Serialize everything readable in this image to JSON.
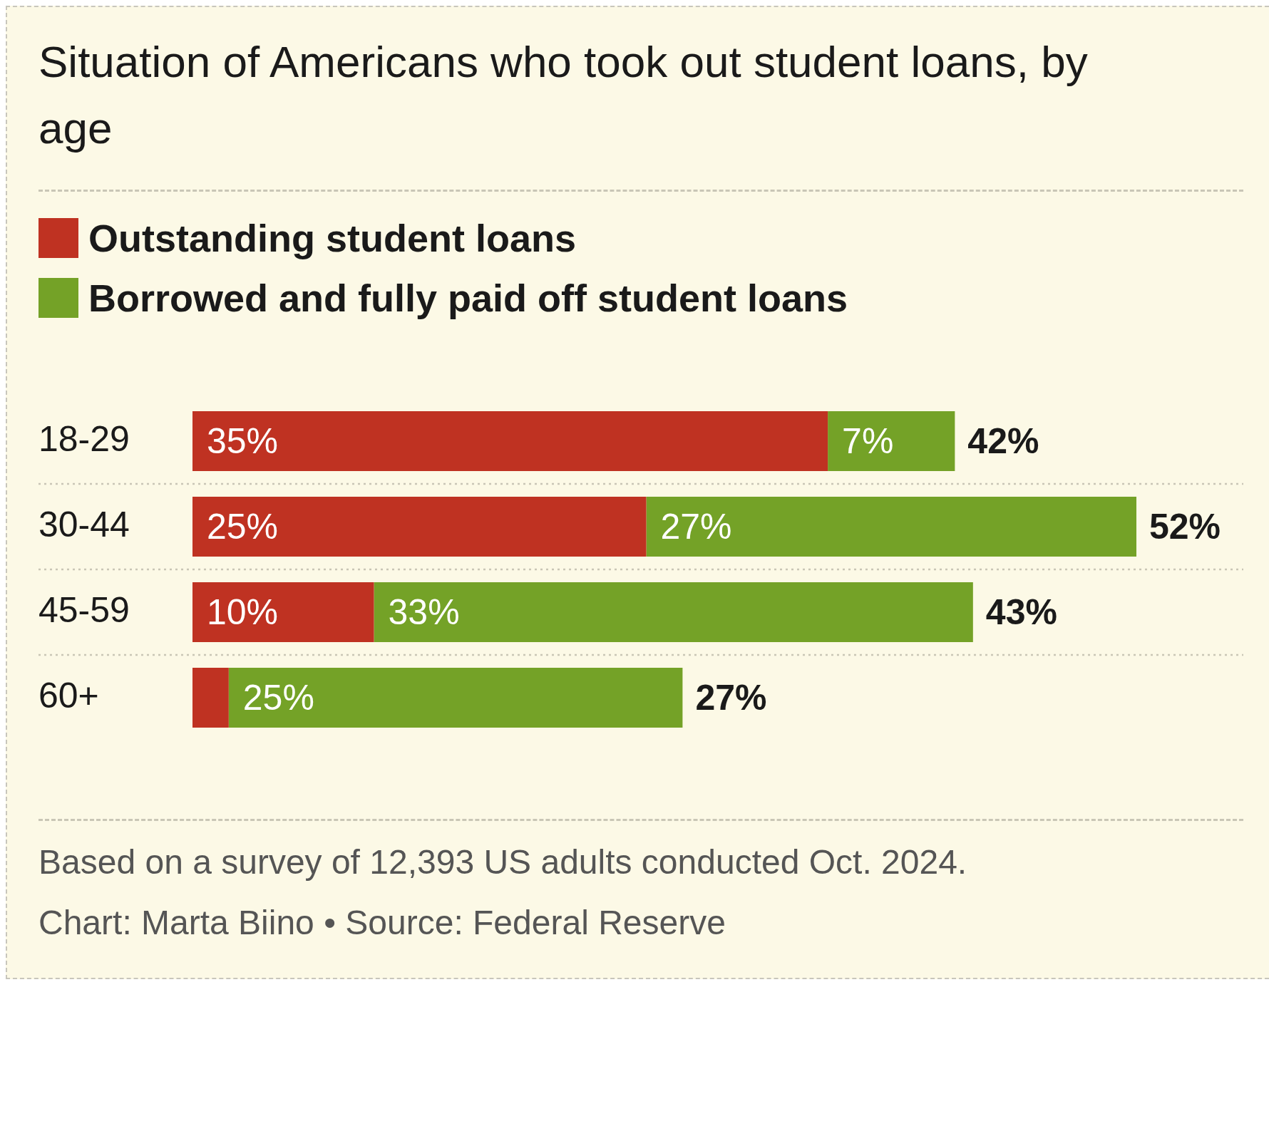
{
  "chart_data": {
    "type": "bar",
    "orientation": "horizontal",
    "stacked": true,
    "title": "Situation of Americans who took out student loans, by age",
    "categories": [
      "18-29",
      "30-44",
      "45-59",
      "60+"
    ],
    "series": [
      {
        "name": "Outstanding student loans",
        "color": "#bf3222",
        "values": [
          35,
          25,
          10,
          2
        ],
        "value_labels": [
          "35%",
          "25%",
          "10%",
          null
        ]
      },
      {
        "name": "Borrowed and fully paid off student loans",
        "color": "#74a227",
        "values": [
          7,
          27,
          33,
          25
        ],
        "value_labels": [
          "7%",
          "27%",
          "33%",
          "25%"
        ]
      }
    ],
    "totals": [
      "42%",
      "52%",
      "43%",
      "27%"
    ],
    "legend": "top left",
    "grid": "y",
    "annotations": [
      "Based on a survey of 12,393 US adults conducted Oct. 2024.",
      "Chart: Marta Biino • Source: Federal Reserve"
    ]
  }
}
